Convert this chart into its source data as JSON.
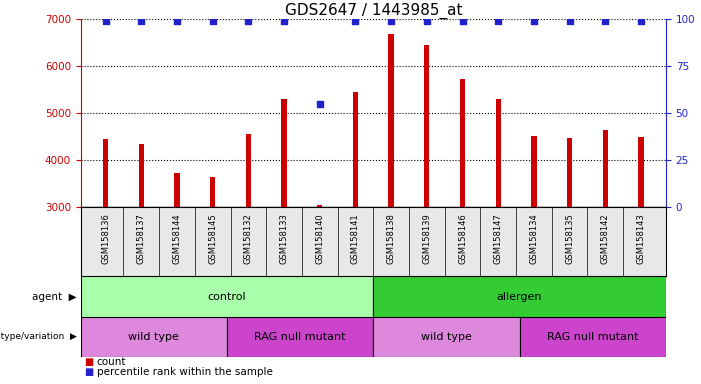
{
  "title": "GDS2647 / 1443985_at",
  "samples": [
    "GSM158136",
    "GSM158137",
    "GSM158144",
    "GSM158145",
    "GSM158132",
    "GSM158133",
    "GSM158140",
    "GSM158141",
    "GSM158138",
    "GSM158139",
    "GSM158146",
    "GSM158147",
    "GSM158134",
    "GSM158135",
    "GSM158142",
    "GSM158143"
  ],
  "counts": [
    4450,
    4350,
    3720,
    3640,
    4560,
    5300,
    3060,
    5450,
    6680,
    6460,
    5720,
    5310,
    4520,
    4480,
    4640,
    4490
  ],
  "percentile_ranks": [
    99,
    99,
    99,
    99,
    99,
    99,
    55,
    99,
    99,
    99,
    99,
    99,
    99,
    99,
    99,
    99
  ],
  "ylim_left": [
    3000,
    7000
  ],
  "ylim_right": [
    0,
    100
  ],
  "yticks_left": [
    3000,
    4000,
    5000,
    6000,
    7000
  ],
  "yticks_right": [
    0,
    25,
    50,
    75,
    100
  ],
  "bar_color": "#cc0000",
  "dot_color": "#2222cc",
  "agent_groups": [
    {
      "label": "control",
      "start": 0,
      "end": 8,
      "color": "#aaffaa"
    },
    {
      "label": "allergen",
      "start": 8,
      "end": 16,
      "color": "#33cc33"
    }
  ],
  "genotype_groups": [
    {
      "label": "wild type",
      "start": 0,
      "end": 4,
      "color": "#dd88dd"
    },
    {
      "label": "RAG null mutant",
      "start": 4,
      "end": 8,
      "color": "#cc44cc"
    },
    {
      "label": "wild type",
      "start": 8,
      "end": 12,
      "color": "#dd88dd"
    },
    {
      "label": "RAG null mutant",
      "start": 12,
      "end": 16,
      "color": "#cc44cc"
    }
  ],
  "legend_count_color": "#cc0000",
  "legend_dot_color": "#2222cc",
  "bg_color": "#e8e8e8"
}
